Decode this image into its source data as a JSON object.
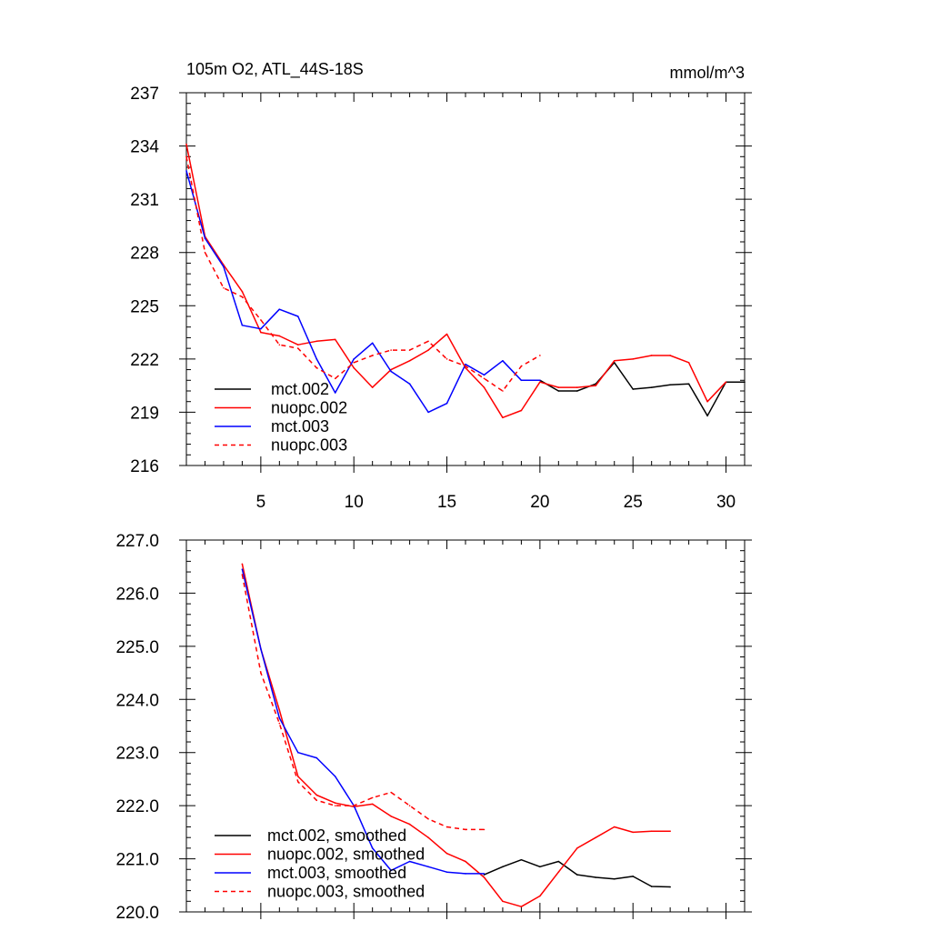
{
  "chart_data": [
    {
      "type": "line",
      "title": "105m O2, ATL_44S-18S",
      "units": "mmol/m^3",
      "xlim": [
        1,
        31
      ],
      "ylim": [
        216,
        237
      ],
      "xticks": [
        5,
        10,
        15,
        20,
        25,
        30
      ],
      "yticks": [
        216,
        219,
        222,
        225,
        228,
        231,
        234,
        237
      ],
      "ytick_labels": [
        "216",
        "219",
        "222",
        "225",
        "228",
        "231",
        "234",
        "237"
      ],
      "legend_position": "bottom-left",
      "series": [
        {
          "name": "mct.002",
          "color": "#000000",
          "dash": false,
          "x": [
            20,
            21,
            22,
            23,
            24,
            25,
            26,
            27,
            28,
            29,
            30,
            31
          ],
          "y": [
            220.8,
            220.2,
            220.2,
            220.6,
            221.8,
            220.3,
            220.4,
            220.55,
            220.6,
            218.8,
            220.7,
            220.7
          ]
        },
        {
          "name": "nuopc.002",
          "color": "#ff0000",
          "dash": false,
          "x": [
            1,
            2,
            3,
            4,
            5,
            6,
            7,
            8,
            9,
            10,
            11,
            12,
            13,
            14,
            15,
            16,
            17,
            18,
            19,
            20,
            21,
            22,
            23,
            24,
            25,
            26,
            27,
            28,
            29,
            30
          ],
          "y": [
            234.1,
            228.9,
            227.3,
            225.8,
            223.5,
            223.3,
            222.8,
            223.0,
            223.1,
            221.5,
            220.4,
            221.4,
            221.9,
            222.5,
            223.4,
            221.5,
            220.4,
            218.7,
            219.1,
            220.7,
            220.4,
            220.4,
            220.5,
            221.9,
            222.0,
            222.2,
            222.2,
            221.8,
            219.6,
            220.7
          ]
        },
        {
          "name": "mct.003",
          "color": "#0000ff",
          "dash": false,
          "x": [
            1,
            2,
            3,
            4,
            5,
            6,
            7,
            8,
            9,
            10,
            11,
            12,
            13,
            14,
            15,
            16,
            17,
            18,
            19,
            20
          ],
          "y": [
            232.6,
            228.8,
            227.2,
            223.9,
            223.7,
            224.8,
            224.4,
            222.0,
            220.1,
            222.0,
            222.9,
            221.3,
            220.6,
            219.0,
            219.5,
            221.7,
            221.1,
            221.9,
            220.8,
            220.8
          ]
        },
        {
          "name": "nuopc.003",
          "color": "#ff0000",
          "dash": true,
          "x": [
            1,
            2,
            3,
            4,
            5,
            6,
            7,
            8,
            9,
            10,
            11,
            12,
            13,
            14,
            15,
            16,
            17,
            18,
            19,
            20
          ],
          "y": [
            233.4,
            228.0,
            226.0,
            225.5,
            224.2,
            222.8,
            222.6,
            221.5,
            220.9,
            221.8,
            222.2,
            222.5,
            222.5,
            223.0,
            222.0,
            221.6,
            220.9,
            220.2,
            221.6,
            222.2
          ]
        }
      ]
    },
    {
      "type": "line",
      "title": "",
      "xlim": [
        1,
        31
      ],
      "ylim": [
        220.0,
        227.0
      ],
      "xticks": [
        5,
        10,
        15,
        20,
        25,
        30
      ],
      "yticks": [
        220,
        221,
        222,
        223,
        224,
        225,
        226,
        227
      ],
      "ytick_labels": [
        "220.0",
        "221.0",
        "222.0",
        "223.0",
        "224.0",
        "225.0",
        "226.0",
        "227.0"
      ],
      "legend_position": "bottom-left",
      "series": [
        {
          "name": "mct.002, smoothed",
          "color": "#000000",
          "dash": false,
          "x": [
            17,
            18,
            19,
            20,
            21,
            22,
            23,
            24,
            25,
            26,
            27
          ],
          "y": [
            220.7,
            220.85,
            220.98,
            220.85,
            220.95,
            220.7,
            220.65,
            220.62,
            220.67,
            220.48,
            220.47
          ]
        },
        {
          "name": "nuopc.002, smoothed",
          "color": "#ff0000",
          "dash": false,
          "x": [
            4,
            5,
            6,
            7,
            8,
            9,
            10,
            11,
            12,
            13,
            14,
            15,
            16,
            17,
            18,
            19,
            20,
            21,
            22,
            23,
            24,
            25,
            26,
            27
          ],
          "y": [
            226.55,
            224.95,
            223.8,
            222.55,
            222.2,
            222.05,
            221.98,
            222.03,
            221.8,
            221.65,
            221.4,
            221.1,
            220.95,
            220.65,
            220.2,
            220.1,
            220.3,
            220.75,
            221.2,
            221.4,
            221.6,
            221.5,
            221.52,
            221.52
          ]
        },
        {
          "name": "mct.003, smoothed",
          "color": "#0000ff",
          "dash": false,
          "x": [
            4,
            5,
            6,
            7,
            8,
            9,
            10,
            11,
            12,
            13,
            14,
            15,
            16,
            17
          ],
          "y": [
            226.45,
            224.95,
            223.65,
            223.0,
            222.9,
            222.55,
            222.0,
            221.2,
            220.78,
            220.95,
            220.85,
            220.75,
            220.72,
            220.72
          ]
        },
        {
          "name": "nuopc.003, smoothed",
          "color": "#ff0000",
          "dash": true,
          "x": [
            4,
            5,
            6,
            7,
            8,
            9,
            10,
            11,
            12,
            13,
            14,
            15,
            16,
            17
          ],
          "y": [
            226.35,
            224.5,
            223.55,
            222.45,
            222.1,
            222.0,
            222.0,
            222.15,
            222.25,
            222.0,
            221.75,
            221.6,
            221.55,
            221.55
          ]
        }
      ]
    }
  ]
}
